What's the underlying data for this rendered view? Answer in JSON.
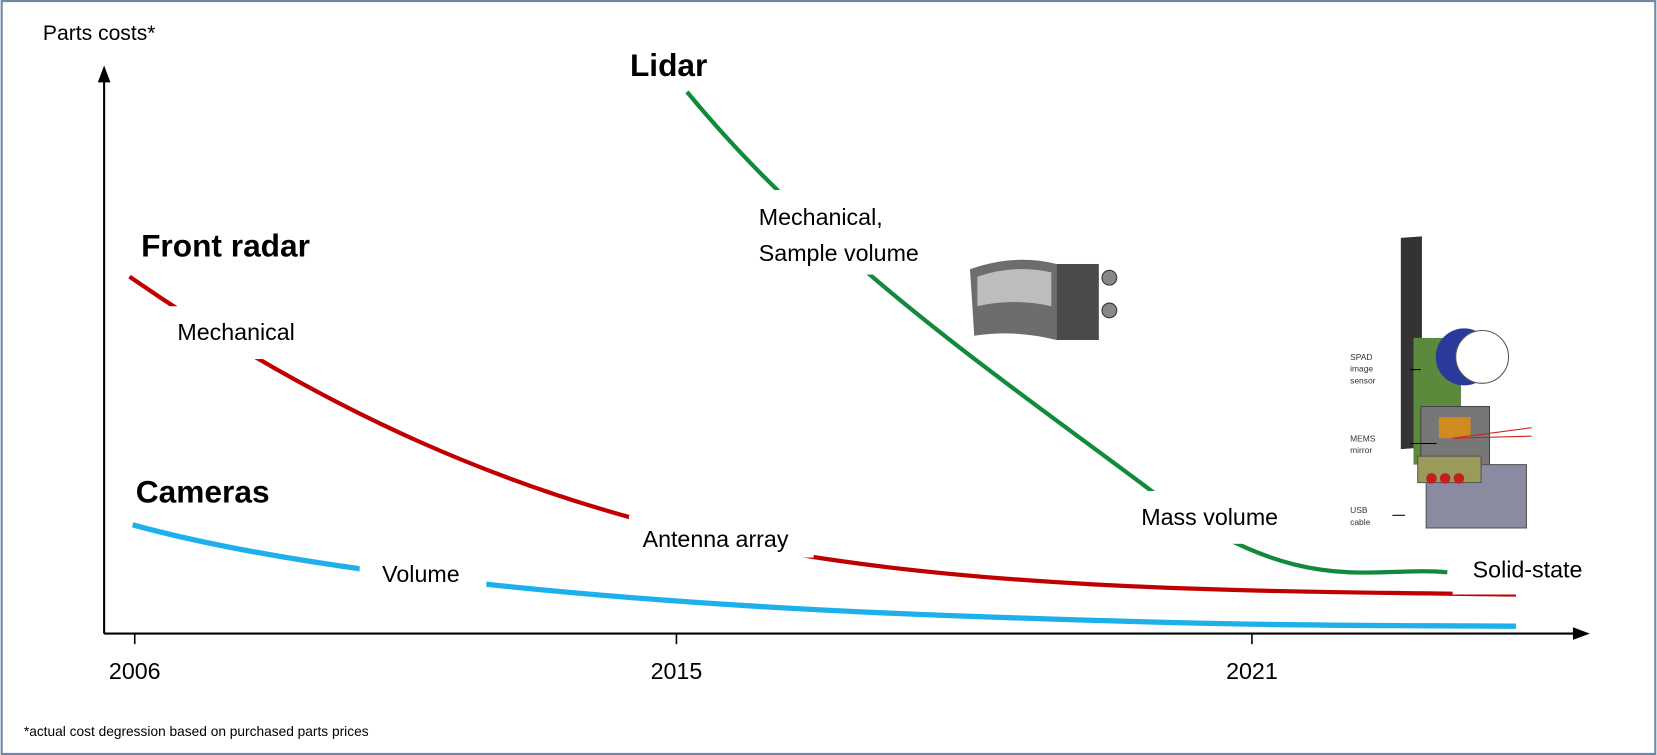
{
  "axis": {
    "y_label": "Parts costs*",
    "x_labels": [
      "2006",
      "2015",
      "2021"
    ]
  },
  "series": [
    {
      "name": "Front radar",
      "stages": [
        [
          "Mechanical"
        ],
        [
          "Antenna array"
        ]
      ]
    },
    {
      "name": "Cameras",
      "stages": [
        [
          "Volume"
        ]
      ]
    },
    {
      "name": "Lidar",
      "stages": [
        [
          "Mechanical,",
          "Sample volume"
        ],
        [
          "Mass volume"
        ],
        [
          "Solid-state"
        ]
      ]
    }
  ],
  "lidar_image_labels": [
    [
      "SPAD",
      "image",
      "sensor"
    ],
    [
      "MEMS",
      "mirror"
    ],
    [
      "USB",
      "cable"
    ]
  ],
  "footnote": "*actual cost degression based on purchased parts prices"
}
